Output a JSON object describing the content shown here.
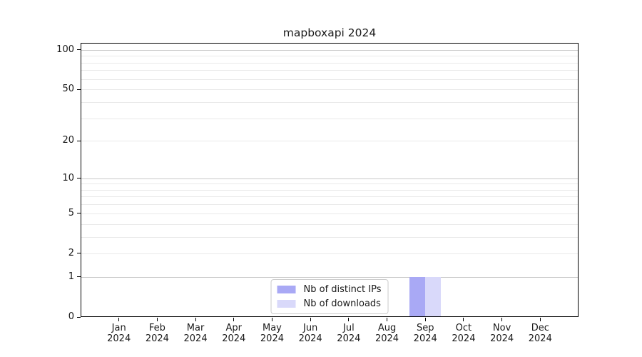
{
  "title": "mapboxapi 2024",
  "chart_data": {
    "type": "bar",
    "title": "mapboxapi 2024",
    "x_tick_year": "2024",
    "categories": [
      "Jan",
      "Feb",
      "Mar",
      "Apr",
      "May",
      "Jun",
      "Jul",
      "Aug",
      "Sep",
      "Oct",
      "Nov",
      "Dec"
    ],
    "series": [
      {
        "name": "Nb of distinct IPs",
        "color": "#a9a9f5",
        "values": [
          0,
          0,
          0,
          0,
          0,
          0,
          0,
          0,
          1,
          0,
          0,
          0
        ]
      },
      {
        "name": "Nb of downloads",
        "color": "#d9d9fa",
        "values": [
          0,
          0,
          0,
          0,
          0,
          0,
          0,
          0,
          1,
          0,
          0,
          0
        ]
      }
    ],
    "xlabel": "",
    "ylabel": "",
    "yscale": "log1p",
    "ylim": [
      0,
      113
    ],
    "yticks": [
      0,
      1,
      2,
      5,
      10,
      20,
      50,
      100
    ],
    "grid": true,
    "grid_major_values": [
      1,
      10,
      100
    ],
    "grid_minor_values": [
      2,
      3,
      4,
      5,
      6,
      7,
      8,
      9,
      20,
      30,
      40,
      50,
      60,
      70,
      80,
      90
    ],
    "legend_position": "lower center",
    "colors": {
      "grid_major": "#c9c9c9",
      "grid_minor": "#e9e9e9",
      "spine": "#000000",
      "text": "#1a1a1a",
      "legend_border": "#cccccc",
      "background": "#ffffff"
    }
  }
}
